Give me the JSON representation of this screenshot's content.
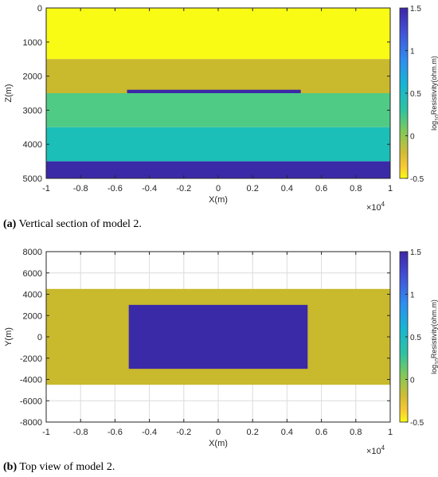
{
  "chart_data": [
    {
      "type": "heatmap",
      "title": "",
      "xlabel": "X(m)",
      "ylabel": "Z(m)",
      "x_exponent_label": "×10",
      "x_exponent_power": "4",
      "xlim": [
        -1,
        1
      ],
      "ylim": [
        0,
        5000
      ],
      "y_reversed": true,
      "x_ticks": [
        "-1",
        "-0.8",
        "-0.6",
        "-0.4",
        "-0.2",
        "0",
        "0.2",
        "0.4",
        "0.6",
        "0.8",
        "1"
      ],
      "y_ticks": [
        "0",
        "1000",
        "2000",
        "3000",
        "4000",
        "5000"
      ],
      "y_tick_values": [
        0,
        1000,
        2000,
        3000,
        4000,
        5000
      ],
      "grid": false,
      "regions": [
        {
          "x": [
            -1,
            1
          ],
          "y": [
            0,
            1500
          ],
          "log10_resistivity": -0.5,
          "color": "#f9fb15"
        },
        {
          "x": [
            -1,
            1
          ],
          "y": [
            1500,
            2500
          ],
          "log10_resistivity": 0.0,
          "color": "#c9b92c"
        },
        {
          "x": [
            -1,
            1
          ],
          "y": [
            2500,
            3500
          ],
          "log10_resistivity": 0.5,
          "color": "#4fcb85"
        },
        {
          "x": [
            -1,
            1
          ],
          "y": [
            3500,
            4500
          ],
          "log10_resistivity": 0.8,
          "color": "#1bbfb8"
        },
        {
          "x": [
            -1,
            1
          ],
          "y": [
            4500,
            5000
          ],
          "log10_resistivity": 1.5,
          "color": "#3a2aa8"
        },
        {
          "x": [
            -0.53,
            0.48
          ],
          "y": [
            2400,
            2500
          ],
          "log10_resistivity": 1.5,
          "color": "#3a2aa8"
        }
      ],
      "colorbar": {
        "label_prefix": "log",
        "label_sub": "10",
        "label_suffix": "Resistivity(ohm.m)",
        "range": [
          -0.5,
          1.5
        ],
        "ticks": [
          "1.5",
          "1",
          "0.5",
          "0",
          "-0.5"
        ],
        "tick_values": [
          1.5,
          1,
          0.5,
          0,
          -0.5
        ]
      },
      "caption_letter": "(a)",
      "caption_text": " Vertical section of model 2."
    },
    {
      "type": "heatmap",
      "title": "",
      "xlabel": "X(m)",
      "ylabel": "Y(m)",
      "x_exponent_label": "×10",
      "x_exponent_power": "4",
      "xlim": [
        -1,
        1
      ],
      "ylim": [
        -8000,
        8000
      ],
      "y_reversed": false,
      "x_ticks": [
        "-1",
        "-0.8",
        "-0.6",
        "-0.4",
        "-0.2",
        "0",
        "0.2",
        "0.4",
        "0.6",
        "0.8",
        "1"
      ],
      "y_ticks": [
        "8000",
        "6000",
        "4000",
        "2000",
        "0",
        "-2000",
        "-4000",
        "-6000",
        "-8000"
      ],
      "y_tick_values": [
        8000,
        6000,
        4000,
        2000,
        0,
        -2000,
        -4000,
        -6000,
        -8000
      ],
      "grid": true,
      "regions": [
        {
          "x": [
            -1,
            1
          ],
          "y": [
            -4500,
            4500
          ],
          "log10_resistivity": 0.0,
          "color": "#c9b92c"
        },
        {
          "x": [
            -0.52,
            0.52
          ],
          "y": [
            -3000,
            3000
          ],
          "log10_resistivity": 1.5,
          "color": "#3a2aa8"
        }
      ],
      "colorbar": {
        "label_prefix": "log",
        "label_sub": "10",
        "label_suffix": "Resistivity(ohm.m)",
        "range": [
          -0.5,
          1.5
        ],
        "ticks": [
          "1.5",
          "1",
          "0.5",
          "0",
          "-0.5"
        ],
        "tick_values": [
          1.5,
          1,
          0.5,
          0,
          -0.5
        ]
      },
      "caption_letter": "(b)",
      "caption_text": " Top view of model 2."
    }
  ]
}
